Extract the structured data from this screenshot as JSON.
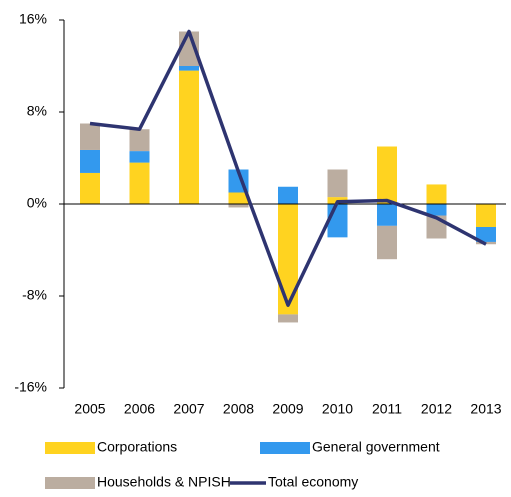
{
  "chart_data": {
    "type": "stacked-bar-line",
    "categories": [
      "2005",
      "2006",
      "2007",
      "2008",
      "2009",
      "2010",
      "2011",
      "2012",
      "2013"
    ],
    "series": [
      {
        "name": "Corporations",
        "color": "#ffd320",
        "type": "bar",
        "values": [
          2.7,
          3.6,
          11.6,
          1.0,
          -9.6,
          0.6,
          5.0,
          1.7,
          -2.0
        ]
      },
      {
        "name": "General government",
        "color": "#3399ee",
        "type": "bar",
        "values": [
          2.0,
          1.0,
          0.4,
          2.0,
          1.5,
          -2.9,
          -1.9,
          -1.0,
          -1.3
        ]
      },
      {
        "name": "Households & NPISH",
        "color": "#bbada0",
        "type": "bar",
        "values": [
          2.3,
          1.9,
          3.0,
          -0.3,
          -0.7,
          2.4,
          -2.9,
          -2.0,
          -0.2
        ]
      },
      {
        "name": "Total economy",
        "color": "#2e3470",
        "type": "line",
        "values": [
          7.0,
          6.5,
          15.0,
          2.8,
          -8.8,
          0.2,
          0.3,
          -1.2,
          -3.5
        ]
      }
    ],
    "ylim": [
      -16,
      16
    ],
    "yticks": [
      {
        "value": -16,
        "label": "-16%"
      },
      {
        "value": -8,
        "label": "-8%"
      },
      {
        "value": 0,
        "label": "0%"
      },
      {
        "value": 8,
        "label": "8%"
      },
      {
        "value": 16,
        "label": "16%"
      }
    ]
  }
}
